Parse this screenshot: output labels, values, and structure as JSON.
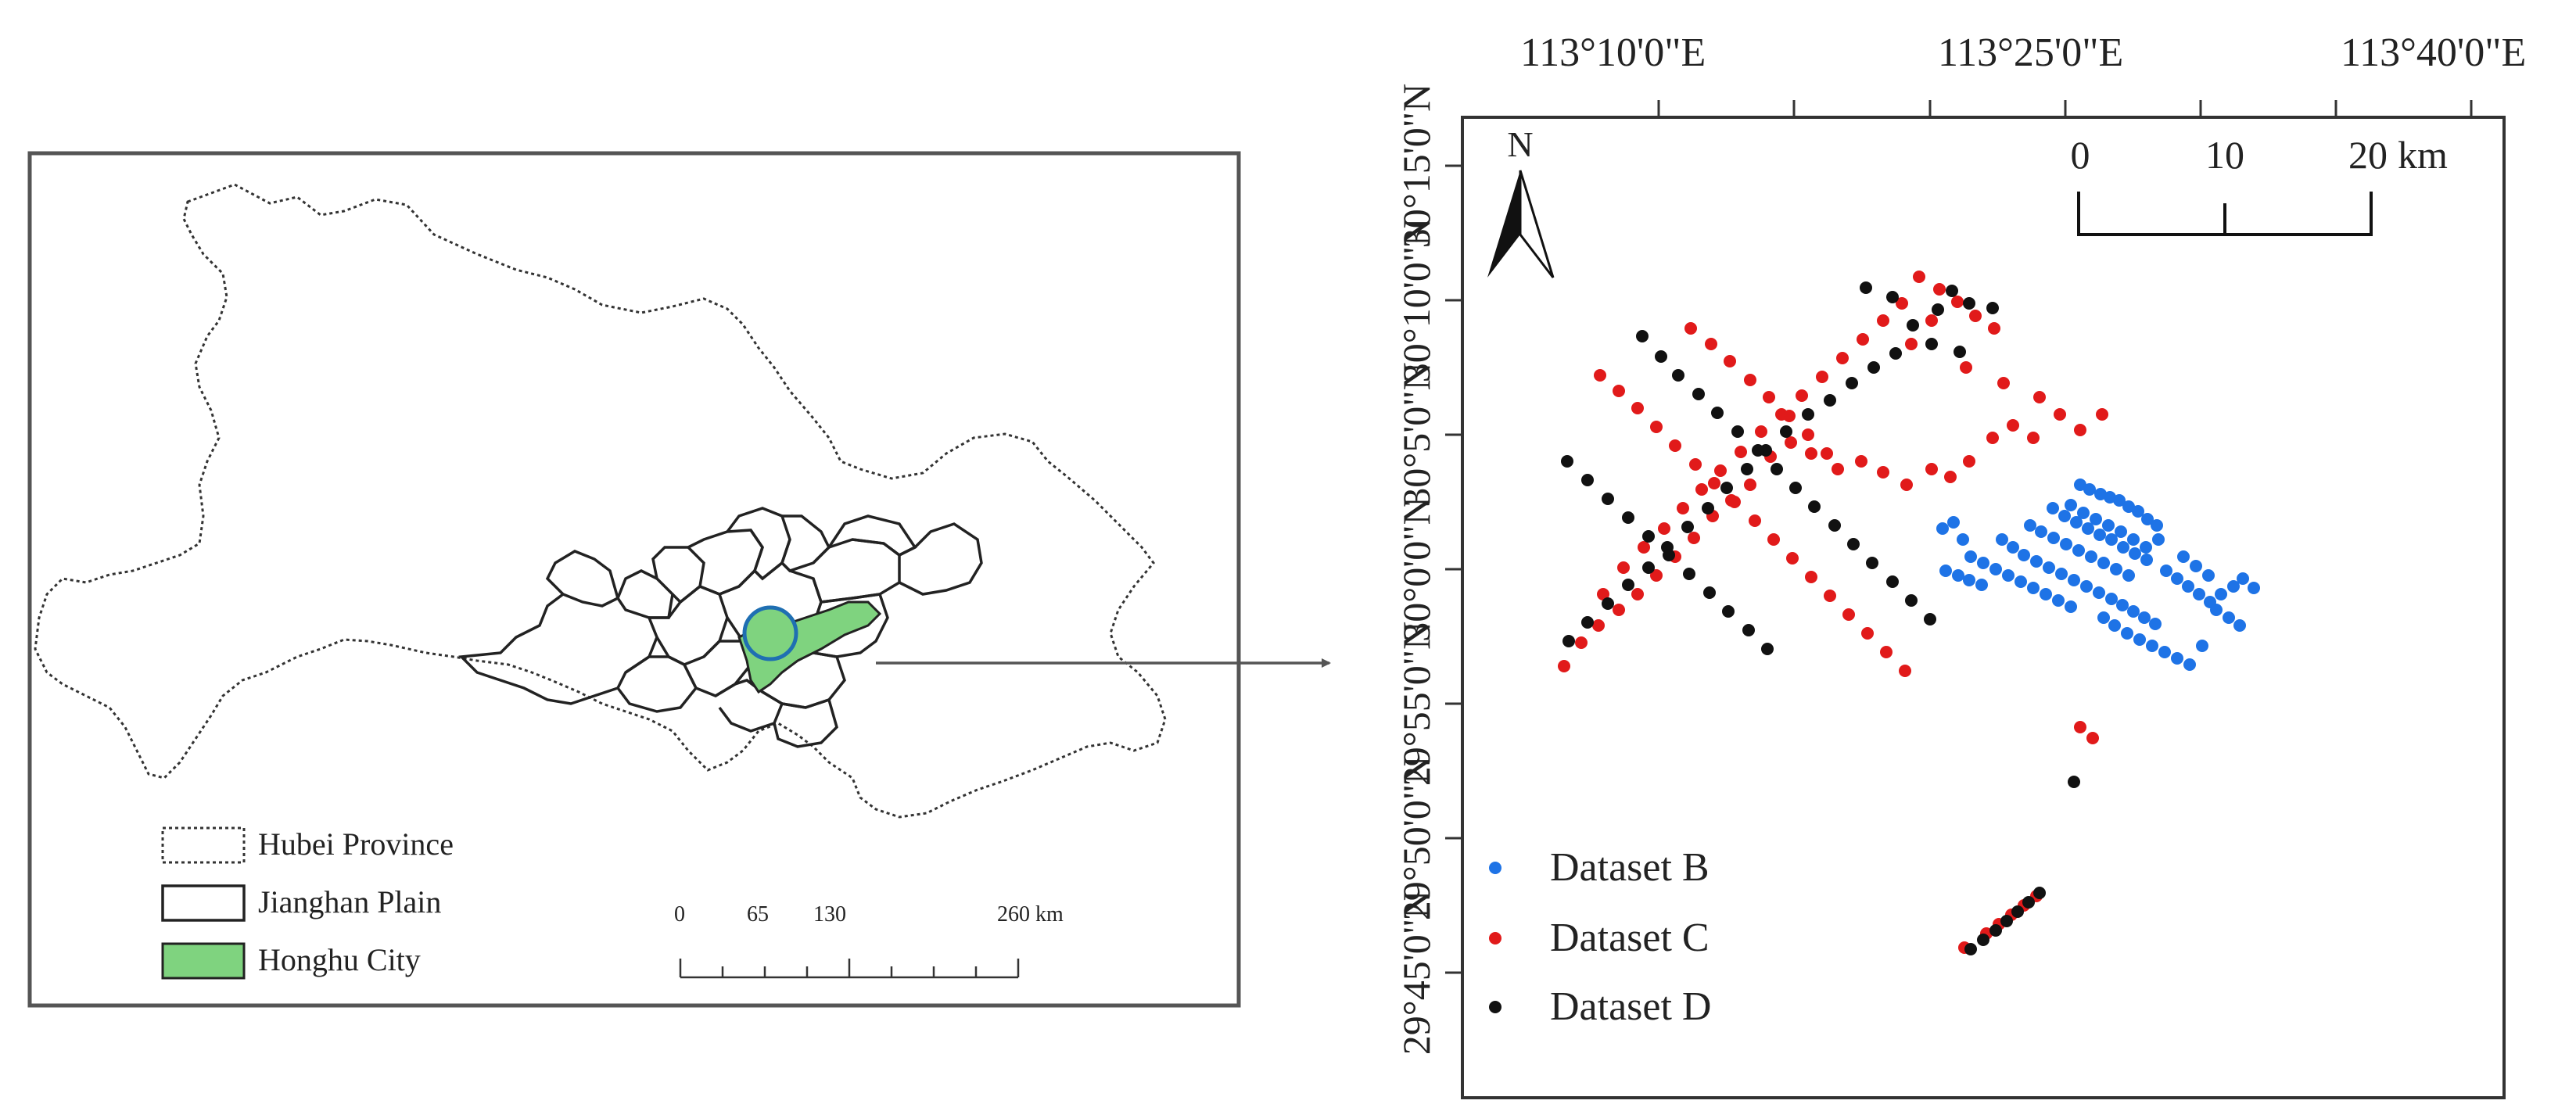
{
  "locator_map": {
    "legend": {
      "items": [
        {
          "label": "Hubei Province",
          "style": "dotted-outline"
        },
        {
          "label": "Jianghan Plain",
          "style": "solid-outline"
        },
        {
          "label": "Honghu City",
          "style": "green-fill"
        }
      ]
    },
    "scale_bar": {
      "labels": [
        "0",
        "65",
        "130",
        "260 km"
      ]
    }
  },
  "study_map": {
    "top_axis_labels": [
      "113°10'0\"E",
      "113°25'0\"E",
      "113°40'0\"E"
    ],
    "left_axis_labels": [
      "30°15'0\"N",
      "30°10'0\"N",
      "30°5'0\"N",
      "30°0'0\"N",
      "29°55'0\"N",
      "29°50'0\"N",
      "29°45'0\"N"
    ],
    "north_arrow_label": "N",
    "scale_bar": {
      "labels": [
        "0",
        "10",
        "20"
      ],
      "unit": "km"
    },
    "legend": [
      {
        "label": "Dataset B",
        "color": "#1e73e6"
      },
      {
        "label": "Dataset C",
        "color": "#e11a1a"
      },
      {
        "label": "Dataset D",
        "color": "#111111"
      }
    ]
  },
  "colors": {
    "honghu_fill": "#7fd37f",
    "dataset_b": "#1e73e6",
    "dataset_c": "#e11a1a",
    "dataset_d": "#111111"
  }
}
